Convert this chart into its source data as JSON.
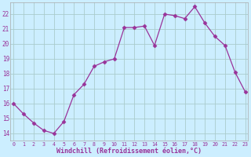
{
  "x": [
    0,
    1,
    2,
    3,
    4,
    5,
    6,
    7,
    8,
    9,
    10,
    11,
    12,
    13,
    14,
    15,
    16,
    17,
    18,
    19,
    20,
    21,
    22,
    23
  ],
  "y": [
    16.0,
    15.3,
    14.7,
    14.2,
    14.0,
    14.8,
    16.6,
    17.3,
    18.5,
    18.8,
    19.0,
    21.1,
    21.1,
    21.2,
    19.9,
    22.0,
    21.9,
    21.7,
    22.5,
    21.4,
    20.5,
    19.9,
    18.1,
    16.8
  ],
  "line_color": "#993399",
  "marker": "D",
  "marker_size": 2.5,
  "bg_color": "#cceeff",
  "grid_color": "#aacccc",
  "tick_label_color": "#993399",
  "xlabel": "Windchill (Refroidissement éolien,°C)",
  "xlabel_color": "#993399",
  "ylim": [
    13.5,
    22.8
  ],
  "yticks": [
    14,
    15,
    16,
    17,
    18,
    19,
    20,
    21,
    22
  ],
  "xticks": [
    0,
    1,
    2,
    3,
    4,
    5,
    6,
    7,
    8,
    9,
    10,
    11,
    12,
    13,
    14,
    15,
    16,
    17,
    18,
    19,
    20,
    21,
    22,
    23
  ]
}
